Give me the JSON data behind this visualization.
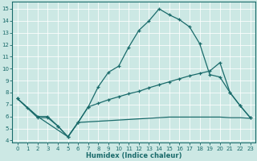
{
  "xlabel": "Humidex (Indice chaleur)",
  "bg_color": "#cce8e4",
  "line_color": "#1a6b6b",
  "xlim": [
    -0.5,
    23.5
  ],
  "ylim": [
    3.8,
    15.6
  ],
  "xticks": [
    0,
    1,
    2,
    3,
    4,
    5,
    6,
    7,
    8,
    9,
    10,
    11,
    12,
    13,
    14,
    15,
    16,
    17,
    18,
    19,
    20,
    21,
    22,
    23
  ],
  "yticks": [
    4,
    5,
    6,
    7,
    8,
    9,
    10,
    11,
    12,
    13,
    14,
    15
  ],
  "curve1_x": [
    0,
    1,
    2,
    3,
    4,
    5,
    6,
    7,
    8,
    9,
    10,
    11,
    12,
    13,
    14,
    15,
    16,
    17,
    18,
    19,
    20,
    21,
    22,
    23
  ],
  "curve1_y": [
    7.5,
    6.7,
    5.9,
    5.9,
    5.2,
    4.3,
    5.5,
    6.8,
    8.5,
    9.7,
    10.2,
    11.8,
    13.2,
    14.0,
    15.0,
    14.5,
    14.1,
    13.5,
    12.1,
    9.5,
    9.3,
    8.0,
    6.9,
    5.9
  ],
  "curve2_x": [
    0,
    2,
    3,
    4,
    5,
    6,
    7,
    8,
    9,
    10,
    11,
    12,
    13,
    14,
    15,
    16,
    17,
    18,
    19,
    20,
    21,
    22,
    23
  ],
  "curve2_y": [
    7.5,
    6.0,
    6.0,
    5.2,
    4.3,
    5.5,
    6.8,
    7.1,
    7.4,
    7.65,
    7.9,
    8.1,
    8.4,
    8.65,
    8.9,
    9.15,
    9.4,
    9.6,
    9.8,
    10.5,
    8.0,
    6.9,
    5.9
  ],
  "curve3_x": [
    0,
    2,
    5,
    6,
    7,
    8,
    9,
    10,
    11,
    12,
    13,
    14,
    15,
    16,
    17,
    18,
    19,
    20,
    21,
    22,
    23
  ],
  "curve3_y": [
    7.5,
    6.0,
    4.3,
    5.5,
    5.55,
    5.6,
    5.65,
    5.7,
    5.75,
    5.8,
    5.85,
    5.9,
    5.95,
    5.95,
    5.95,
    5.95,
    5.95,
    5.95,
    5.9,
    5.9,
    5.85
  ]
}
